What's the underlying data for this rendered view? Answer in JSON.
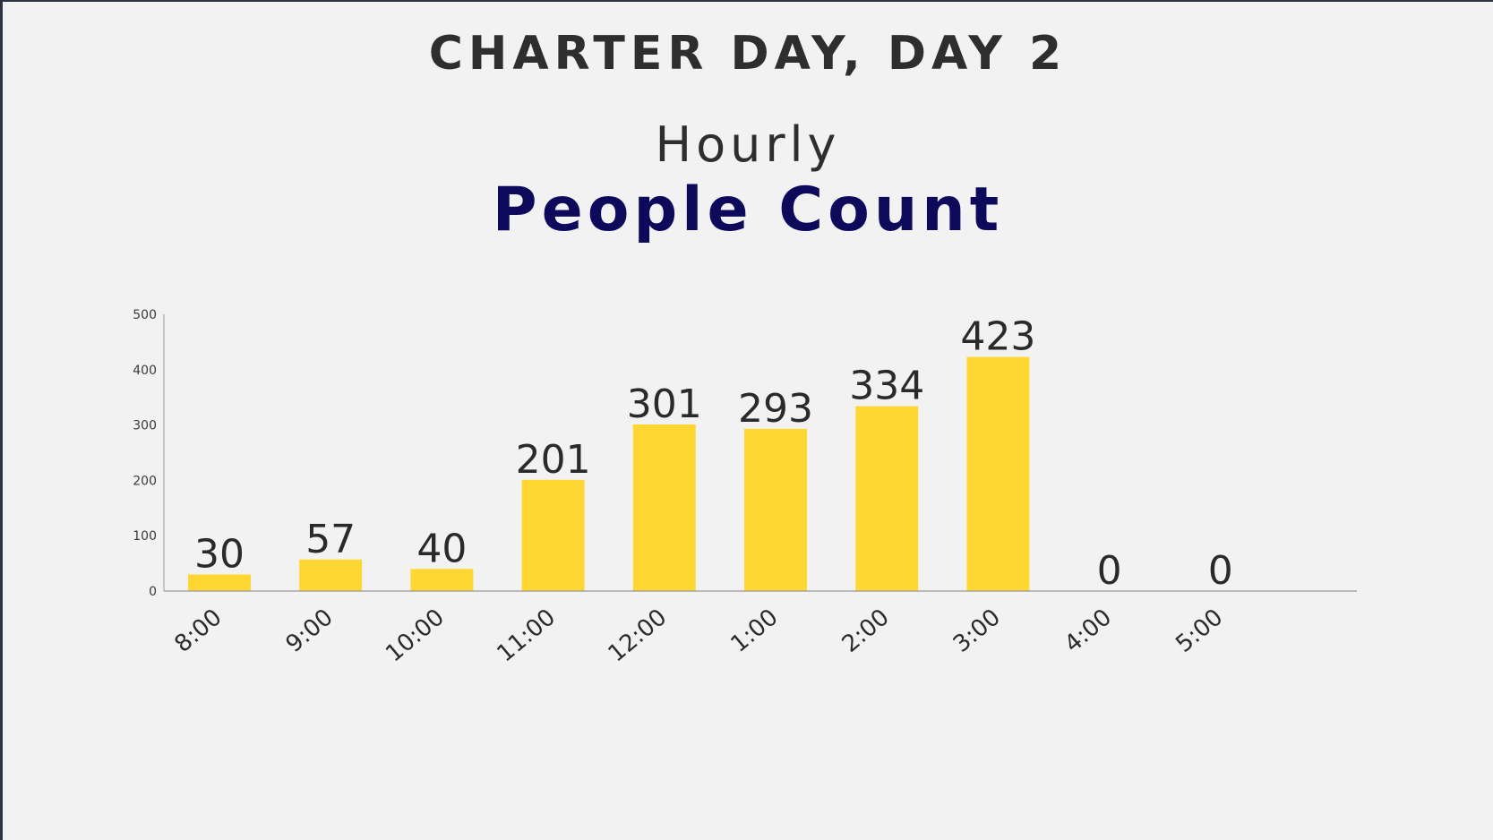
{
  "title": "CHARTER DAY, DAY 2",
  "subtitle": "Hourly",
  "heading": "People Count",
  "colors": {
    "bar": "#ffd733",
    "heading": "#0d0a5c",
    "text": "#2e2e2e",
    "axis": "#999999"
  },
  "chart_data": {
    "type": "bar",
    "categories": [
      "8:00",
      "9:00",
      "10:00",
      "11:00",
      "12:00",
      "1:00",
      "2:00",
      "3:00",
      "4:00",
      "5:00"
    ],
    "values": [
      30,
      57,
      40,
      201,
      301,
      293,
      334,
      423,
      0,
      0
    ],
    "data_labels": [
      "30",
      "57",
      "40",
      "201",
      "301",
      "293",
      "334",
      "423",
      "0",
      "0"
    ],
    "y_ticks": [
      "0",
      "100",
      "200",
      "300",
      "400",
      "500"
    ],
    "ylim": [
      0,
      500
    ],
    "grid": false,
    "legend": "none"
  }
}
